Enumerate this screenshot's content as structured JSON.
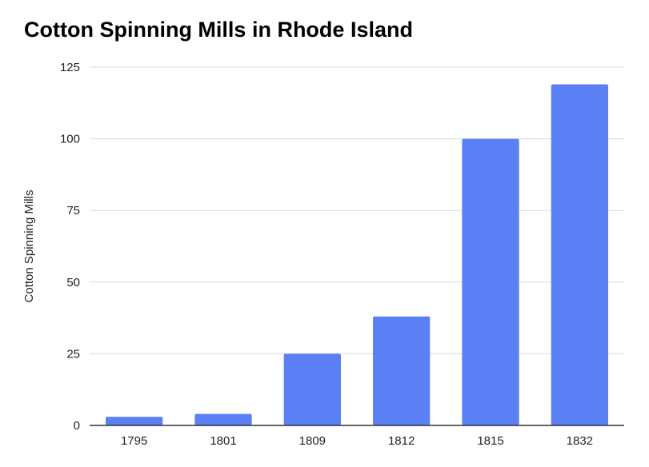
{
  "chart_data": {
    "type": "bar",
    "title": "Cotton Spinning Mills in Rhode Island",
    "xlabel": "",
    "ylabel": "Cotton Spinning Mills",
    "categories": [
      "1795",
      "1801",
      "1809",
      "1812",
      "1815",
      "1832"
    ],
    "values": [
      3,
      4,
      25,
      38,
      100,
      119
    ],
    "ylim": [
      0,
      125
    ],
    "yticks": [
      0,
      25,
      50,
      75,
      100,
      125
    ],
    "grid": true,
    "legend": "none",
    "colors": {
      "bar": "#5b7ff5",
      "grid": "#d9d9d9",
      "axis": "#333333"
    }
  }
}
